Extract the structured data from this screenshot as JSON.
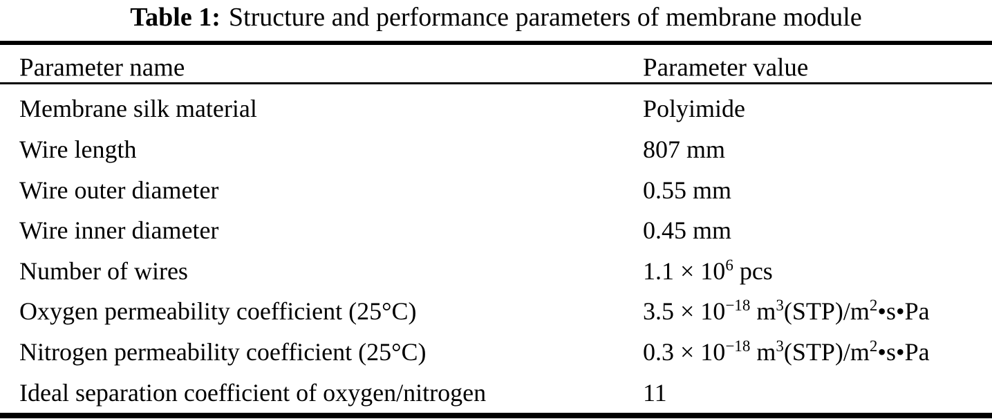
{
  "caption": {
    "label": "Table 1:",
    "text": "Structure and performance parameters of membrane module"
  },
  "table": {
    "headers": {
      "name": "Parameter name",
      "value": "Parameter value"
    },
    "rows": [
      {
        "name": "Membrane silk material",
        "value": [
          {
            "t": "Polyimide"
          }
        ]
      },
      {
        "name": "Wire length",
        "value": [
          {
            "t": "807 mm"
          }
        ]
      },
      {
        "name": "Wire outer diameter",
        "value": [
          {
            "t": "0.55 mm"
          }
        ]
      },
      {
        "name": "Wire inner diameter",
        "value": [
          {
            "t": "0.45 mm"
          }
        ]
      },
      {
        "name": "Number of wires",
        "value": [
          {
            "t": "1.1 × 10"
          },
          {
            "t": "6",
            "sup": true
          },
          {
            "t": " pcs"
          }
        ]
      },
      {
        "name": "Oxygen permeability coefficient (25°C)",
        "value": [
          {
            "t": "3.5 × 10"
          },
          {
            "t": "−18",
            "sup": true
          },
          {
            "t": " m"
          },
          {
            "t": "3",
            "sup": true
          },
          {
            "t": "(STP)/m"
          },
          {
            "t": "2",
            "sup": true
          },
          {
            "t": "•s•Pa"
          }
        ]
      },
      {
        "name": "Nitrogen permeability coefficient (25°C)",
        "value": [
          {
            "t": "0.3 × 10"
          },
          {
            "t": "−18",
            "sup": true
          },
          {
            "t": " m"
          },
          {
            "t": "3",
            "sup": true
          },
          {
            "t": "(STP)/m"
          },
          {
            "t": "2",
            "sup": true
          },
          {
            "t": "•s•Pa"
          }
        ]
      },
      {
        "name": "Ideal separation coefficient of oxygen/nitrogen",
        "value": [
          {
            "t": "11"
          }
        ]
      }
    ]
  }
}
